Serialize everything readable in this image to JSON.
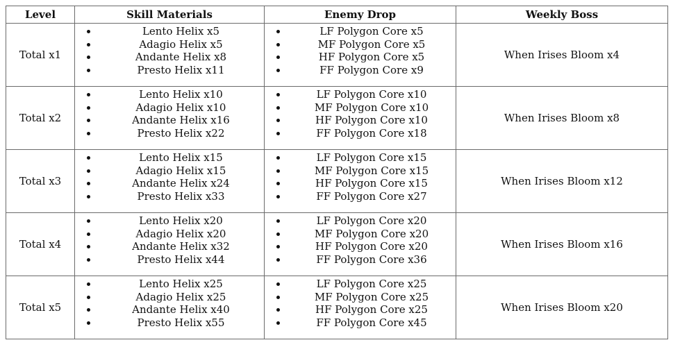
{
  "colors": {
    "border": "#6a6a6a",
    "text": "#111111",
    "background": "#ffffff"
  },
  "table": {
    "headers": {
      "level": "Level",
      "skill_materials": "Skill Materials",
      "enemy_drop": "Enemy Drop",
      "weekly_boss": "Weekly Boss"
    },
    "rows": [
      {
        "level": "Total x1",
        "skill_materials": [
          "Lento Helix x5",
          "Adagio Helix x5",
          "Andante Helix x8",
          "Presto Helix x11"
        ],
        "enemy_drop": [
          "LF Polygon Core x5",
          "MF Polygon Core x5",
          "HF Polygon Core x5",
          "FF Polygon Core x9"
        ],
        "weekly_boss": "When Irises Bloom x4"
      },
      {
        "level": "Total x2",
        "skill_materials": [
          "Lento Helix x10",
          "Adagio Helix x10",
          "Andante Helix x16",
          "Presto Helix x22"
        ],
        "enemy_drop": [
          "LF Polygon Core x10",
          "MF Polygon Core x10",
          "HF Polygon Core x10",
          "FF Polygon Core x18"
        ],
        "weekly_boss": "When Irises Bloom x8"
      },
      {
        "level": "Total x3",
        "skill_materials": [
          "Lento Helix x15",
          "Adagio Helix x15",
          "Andante Helix x24",
          "Presto Helix x33"
        ],
        "enemy_drop": [
          "LF Polygon Core x15",
          "MF Polygon Core x15",
          "HF Polygon Core x15",
          "FF Polygon Core x27"
        ],
        "weekly_boss": "When Irises Bloom x12"
      },
      {
        "level": "Total x4",
        "skill_materials": [
          "Lento Helix x20",
          "Adagio Helix x20",
          "Andante Helix x32",
          "Presto Helix x44"
        ],
        "enemy_drop": [
          "LF Polygon Core x20",
          "MF Polygon Core x20",
          "HF Polygon Core x20",
          "FF Polygon Core x36"
        ],
        "weekly_boss": "When Irises Bloom x16"
      },
      {
        "level": "Total x5",
        "skill_materials": [
          "Lento Helix x25",
          "Adagio Helix x25",
          "Andante Helix x40",
          "Presto Helix x55"
        ],
        "enemy_drop": [
          "LF Polygon Core x25",
          "MF Polygon Core x25",
          "HF Polygon Core x25",
          "FF Polygon Core x45"
        ],
        "weekly_boss": "When Irises Bloom x20"
      }
    ]
  }
}
